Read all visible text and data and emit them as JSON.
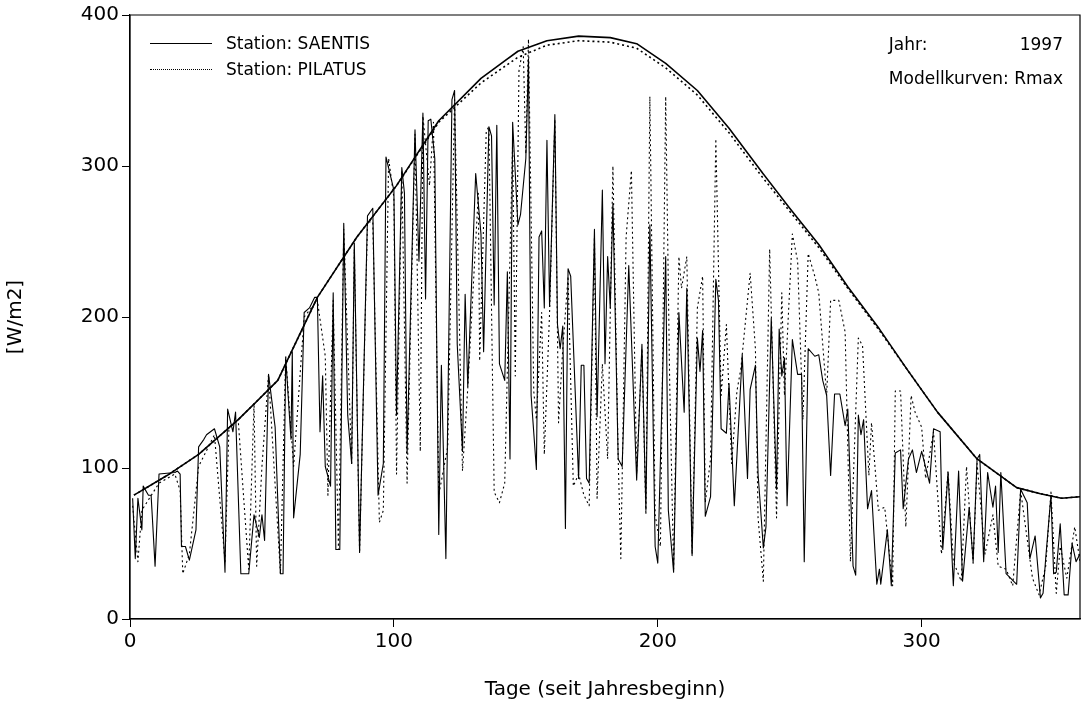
{
  "chart_data": {
    "type": "line",
    "xlabel": "Tage (seit Jahresbeginn)",
    "ylabel": "[W/m2]",
    "xlim": [
      0,
      360
    ],
    "xticks": [
      0,
      100,
      200,
      300
    ],
    "ylim": [
      0,
      400
    ],
    "yticks": [
      0,
      100,
      200,
      300,
      400
    ],
    "grid": false,
    "legend": "top left",
    "marker": "none",
    "annotations": [
      "Jahr:",
      "1997",
      "Modellkurven: Rmax"
    ],
    "series": [
      {
        "name": "Station: SAENTIS",
        "color": "#000000",
        "line_style": "solid",
        "x": [
          1,
          2,
          3,
          4.5,
          5,
          7,
          8,
          9.5,
          11,
          17,
          18,
          19,
          19.5,
          21,
          22.5,
          25,
          26,
          28,
          29,
          32,
          34,
          36,
          37,
          39,
          40,
          42,
          45,
          47,
          49,
          50,
          51,
          52.5,
          55,
          57,
          58,
          59,
          61,
          61.5,
          62,
          64.5,
          66,
          68,
          70,
          71,
          72,
          73,
          74,
          76,
          77,
          78,
          79.5,
          81,
          82.5,
          84,
          85,
          87,
          90,
          92,
          94,
          96,
          97,
          100,
          101,
          103,
          104,
          105,
          108,
          109.5,
          111,
          112,
          113,
          114,
          115.5,
          117,
          118,
          119.7,
          122,
          123,
          124,
          126,
          127,
          128,
          131,
          133,
          134,
          136,
          137,
          138,
          139,
          140,
          142,
          143,
          144,
          145,
          147,
          148,
          150,
          151,
          152,
          154,
          155,
          156,
          157,
          158,
          159,
          161,
          162,
          163,
          164,
          165,
          166,
          167,
          170,
          171,
          172,
          173,
          174,
          176,
          177,
          179,
          180,
          181,
          182,
          183,
          185,
          186.5,
          189,
          192,
          194,
          195.5,
          197,
          199,
          200,
          203,
          204,
          206,
          208,
          210,
          211,
          213,
          215,
          216,
          217,
          218,
          220,
          222,
          223,
          224,
          226,
          227,
          229,
          232,
          234,
          235,
          237,
          238,
          239,
          240,
          241,
          243,
          245,
          246,
          247,
          248,
          249,
          251,
          253,
          254.5,
          255.5,
          257,
          259.5,
          261,
          262.5,
          264,
          265.5,
          267,
          269,
          271,
          272,
          274,
          275,
          276,
          277,
          278,
          279.5,
          281,
          283,
          284,
          284.5,
          287,
          288.5,
          290,
          292,
          293,
          295,
          296.5,
          298,
          300,
          303,
          304.5,
          307,
          308,
          310,
          312,
          314,
          315.5,
          318,
          319.5,
          321,
          322,
          323.5,
          325,
          327,
          328,
          329,
          330,
          332,
          336,
          337.5,
          340,
          341,
          343,
          345,
          346,
          347,
          349,
          350,
          351,
          352.5,
          354,
          355.5,
          357,
          358.5,
          360
        ],
        "values": [
          80,
          40,
          80,
          59,
          88,
          82,
          82,
          35,
          96,
          97,
          98,
          96,
          48,
          48,
          39,
          59,
          114,
          119,
          122,
          126,
          114,
          31,
          139,
          124,
          137,
          30,
          30,
          69,
          54,
          69,
          52,
          162,
          127,
          30,
          30,
          173,
          119,
          177,
          67,
          109,
          203,
          206,
          213,
          213,
          124,
          161,
          101,
          88,
          216,
          46,
          46,
          262,
          135,
          103,
          249,
          44,
          267,
          272,
          82,
          103,
          306,
          284,
          135,
          299,
          282,
          110,
          324,
          237,
          335,
          212,
          330,
          331,
          305,
          56,
          168,
          40,
          344,
          350,
          182,
          111,
          215,
          154,
          295,
          255,
          177,
          326,
          320,
          208,
          327,
          169,
          158,
          230,
          106,
          329,
          261,
          268,
          305,
          371,
          148,
          99,
          253,
          257,
          206,
          317,
          207,
          334,
          195,
          179,
          194,
          60,
          232,
          227,
          93,
          168,
          168,
          93,
          90,
          258,
          134,
          284,
          169,
          240,
          206,
          275,
          106,
          101,
          234,
          92,
          182,
          72,
          261,
          48,
          37,
          240,
          72,
          31,
          203,
          137,
          219,
          42,
          186,
          164,
          191,
          68,
          81,
          225,
          211,
          126,
          123,
          156,
          75,
          175,
          93,
          152,
          168,
          96,
          72,
          47,
          61,
          199,
          86,
          192,
          161,
          173,
          75,
          185,
          162,
          162,
          38,
          179,
          174,
          175,
          158,
          148,
          95,
          149,
          149,
          128,
          139,
          35,
          29,
          135,
          122,
          132,
          73,
          85,
          23,
          33,
          23,
          59,
          22,
          110,
          112,
          73,
          106,
          112,
          97,
          111,
          90,
          126,
          124,
          46,
          97,
          22,
          98,
          25,
          74,
          38,
          106,
          109,
          38,
          97,
          74,
          88,
          44,
          97,
          30,
          23,
          86,
          77,
          40,
          55,
          14,
          17,
          40,
          82,
          30,
          31,
          63,
          16,
          16,
          50,
          38,
          43
        ]
      },
      {
        "name": "Station: PILATUS",
        "color": "#000000",
        "line_style": "dotted",
        "x": [
          1,
          3,
          4.5,
          11,
          17,
          19,
          20,
          22.5,
          26,
          32,
          36,
          37.5,
          41,
          43,
          45,
          47,
          48,
          50,
          52.5,
          57,
          59,
          62,
          66,
          71,
          74,
          75,
          77,
          79,
          81,
          84,
          85,
          87,
          90,
          92,
          94.5,
          96,
          98,
          100,
          101,
          103,
          105,
          108,
          110,
          111,
          113.5,
          115,
          117,
          120.4,
          123,
          126,
          128,
          132,
          132.5,
          135,
          136,
          138,
          140,
          142,
          145,
          146,
          147.4,
          149,
          150,
          151,
          153,
          154,
          156,
          157,
          159,
          161,
          162.4,
          164,
          166,
          168,
          170,
          172,
          174,
          176,
          177,
          179,
          181,
          183,
          185,
          186,
          188,
          190,
          192,
          194,
          195.5,
          197,
          199,
          201,
          203,
          204.5,
          206,
          208,
          209,
          211,
          213,
          215,
          217,
          218,
          220,
          222,
          224,
          226,
          228,
          230,
          231.5,
          235,
          237,
          238,
          240,
          242.4,
          245,
          247,
          248,
          251,
          253,
          255,
          257,
          259.5,
          261,
          264,
          265.5,
          268.6,
          271,
          273,
          276,
          277.6,
          280,
          281,
          283.6,
          286,
          289,
          290,
          292,
          294,
          296,
          297.5,
          300,
          301.5,
          304.5,
          307.5,
          310,
          312,
          315,
          317,
          319.5,
          321,
          324,
          327,
          329,
          332,
          334.5,
          337.5,
          342,
          344.5,
          347,
          349,
          351,
          352.5,
          355,
          358,
          360
        ],
        "values": [
          75,
          38,
          72,
          90,
          96,
          85,
          30,
          43,
          101,
          122,
          38,
          127,
          132,
          82,
          33,
          143,
          35,
          101,
          162,
          30,
          174,
          101,
          200,
          211,
          174,
          82,
          211,
          46,
          258,
          103,
          245,
          44,
          263,
          263,
          64,
          72,
          305,
          279,
          96,
          297,
          90,
          321,
          111,
          333,
          287,
          329,
          82,
          114,
          344,
          98,
          153,
          282,
          171,
          323,
          326,
          84,
          77,
          90,
          316,
          161,
          363,
          379,
          308,
          384,
          151,
          132,
          203,
          109,
          203,
          331,
          130,
          179,
          227,
          88,
          96,
          82,
          75,
          253,
          80,
          169,
          106,
          300,
          106,
          40,
          253,
          297,
          96,
          179,
          69,
          346,
          69,
          48,
          346,
          158,
          33,
          240,
          219,
          240,
          43,
          206,
          227,
          77,
          106,
          318,
          148,
          195,
          103,
          151,
          166,
          229,
          179,
          67,
          25,
          245,
          67,
          216,
          148,
          255,
          237,
          132,
          242,
          227,
          216,
          148,
          211,
          211,
          190,
          38,
          186,
          181,
          95,
          130,
          72,
          74,
          22,
          151,
          151,
          61,
          148,
          137,
          127,
          93,
          124,
          43,
          98,
          38,
          25,
          101,
          37,
          103,
          43,
          69,
          35,
          33,
          22,
          85,
          27,
          16,
          35,
          84,
          17,
          48,
          27,
          61,
          38
        ]
      },
      {
        "color": "#000000",
        "line_style": "solid",
        "x": [
          1.5,
          14,
          26,
          41,
          56,
          71,
          86,
          101,
          117,
          133,
          147,
          158,
          170,
          182,
          192,
          203,
          215,
          227,
          239,
          250,
          261,
          272,
          284,
          295,
          306,
          321,
          336,
          345,
          353,
          360
        ],
        "values": [
          82,
          95,
          109,
          132,
          158,
          213,
          253,
          287,
          330,
          358,
          376,
          383,
          386,
          385,
          381,
          368,
          350,
          325,
          297,
          272,
          248,
          220,
          192,
          164,
          137,
          106,
          87,
          83,
          80,
          81
        ]
      },
      {
        "color": "#000000",
        "line_style": "dotted",
        "x": [
          1.5,
          14,
          26,
          41,
          56,
          71,
          86,
          101,
          117,
          133,
          147,
          158,
          170,
          182,
          192,
          203,
          215,
          227,
          239,
          250,
          261,
          272,
          284,
          295,
          306,
          321,
          336,
          345,
          353,
          360
        ],
        "values": [
          82,
          95,
          109,
          132,
          158,
          213,
          253,
          287,
          329,
          355,
          372,
          380,
          383,
          382,
          378,
          365,
          347,
          322,
          294,
          270,
          246,
          219,
          191,
          164,
          137,
          106,
          87,
          83,
          80,
          81
        ]
      }
    ]
  }
}
